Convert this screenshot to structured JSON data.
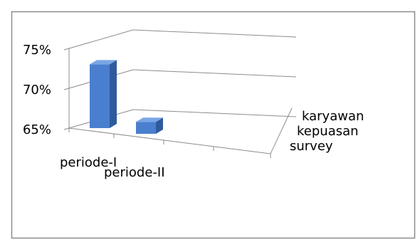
{
  "chart_data": {
    "type": "bar",
    "style": "3d-column",
    "categories": [
      "periode-I",
      "periode-II"
    ],
    "series": [
      {
        "name": "karyawan kepuasan survey",
        "values": [
          73.0,
          66.5
        ]
      }
    ],
    "series_label_lines": [
      "karyawan",
      "kepuasan",
      "survey"
    ],
    "y_ticks": [
      "65%",
      "70%",
      "75%"
    ],
    "ylim": [
      65,
      75
    ],
    "grid": true,
    "legend": "none",
    "bar_color": "#4a7fcf",
    "bar_top_color": "#7aa6e6",
    "bar_side_color": "#2f5b9e",
    "axis_color": "#8c8c8c"
  }
}
